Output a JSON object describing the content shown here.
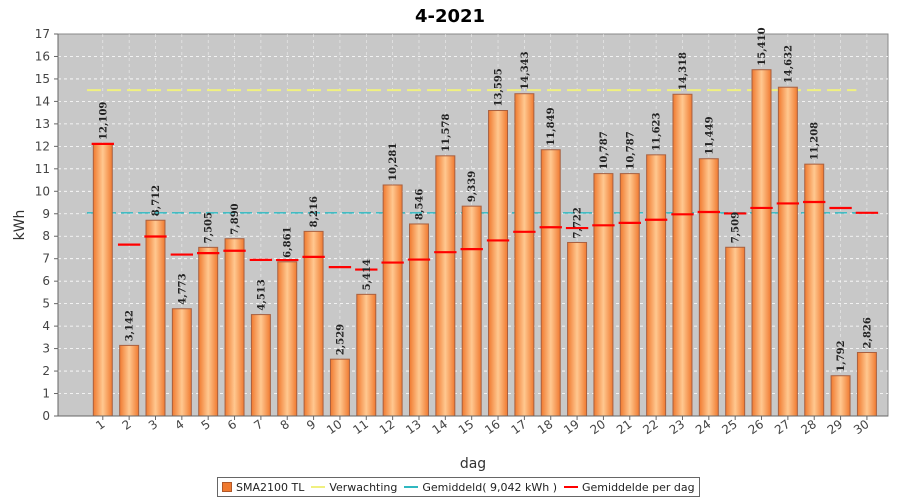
{
  "chart_data": {
    "type": "bar",
    "title": "4-2021",
    "xlabel": "dag",
    "ylabel": "kWh",
    "ylim": [
      0,
      17
    ],
    "yticks": [
      "0",
      "1",
      "2",
      "3",
      "4",
      "5",
      "6",
      "7",
      "8",
      "9",
      "10",
      "11",
      "12",
      "13",
      "14",
      "15",
      "16",
      "17"
    ],
    "categories": [
      "1",
      "2",
      "3",
      "4",
      "5",
      "6",
      "7",
      "8",
      "9",
      "10",
      "11",
      "12",
      "13",
      "14",
      "15",
      "16",
      "17",
      "18",
      "19",
      "20",
      "21",
      "22",
      "23",
      "24",
      "25",
      "26",
      "27",
      "28",
      "29",
      "30"
    ],
    "values": [
      12.109,
      3.142,
      8.712,
      4.773,
      7.505,
      7.89,
      4.513,
      6.861,
      8.216,
      2.529,
      5.414,
      10.281,
      8.546,
      11.578,
      9.339,
      13.595,
      14.343,
      11.849,
      7.722,
      10.787,
      10.787,
      11.623,
      14.318,
      11.449,
      7.509,
      15.41,
      14.632,
      11.208,
      1.792,
      2.826
    ],
    "value_labels": [
      "12,109",
      "3,142",
      "8,712",
      "4,773",
      "7,505",
      "7,890",
      "4,513",
      "6,861",
      "8,216",
      "2,529",
      "5,414",
      "10,281",
      "8,546",
      "11,578",
      "9,339",
      "13,595",
      "14,343",
      "11,849",
      "7,722",
      "10,787",
      "10,787",
      "11,623",
      "14,318",
      "11,449",
      "7,509",
      "15,410",
      "14,632",
      "11,208",
      "1,792",
      "2,826"
    ],
    "running_average": [
      12.109,
      7.626,
      7.988,
      7.184,
      7.248,
      7.355,
      6.949,
      6.939,
      7.081,
      6.626,
      6.516,
      6.829,
      6.961,
      7.291,
      7.428,
      7.813,
      8.197,
      8.4,
      8.364,
      8.485,
      8.594,
      8.732,
      8.975,
      9.077,
      9.014,
      9.26,
      9.459,
      9.522,
      9.255,
      9.042
    ],
    "expectation": 14.5,
    "average": 9.042,
    "legend": {
      "position": "bottom",
      "items": [
        {
          "label": "SMA2100 TL",
          "kind": "bar",
          "color": "#f07a30"
        },
        {
          "label": "Verwachting",
          "kind": "line",
          "color": "#f0f080"
        },
        {
          "label": "Gemiddeld( 9,042 kWh )",
          "kind": "line",
          "color": "#30b8c0"
        },
        {
          "label": "Gemiddelde per dag",
          "kind": "line",
          "color": "#ff0000"
        }
      ]
    },
    "colors": {
      "plot_bg": "#c8c8c8",
      "bar": "#f07a30",
      "bar_light": "#ffc890",
      "bar_border": "#a86040",
      "grid": "#ffffff",
      "expectation": "#f0f080",
      "average": "#30b8c0",
      "running_average": "#ff0000"
    }
  }
}
